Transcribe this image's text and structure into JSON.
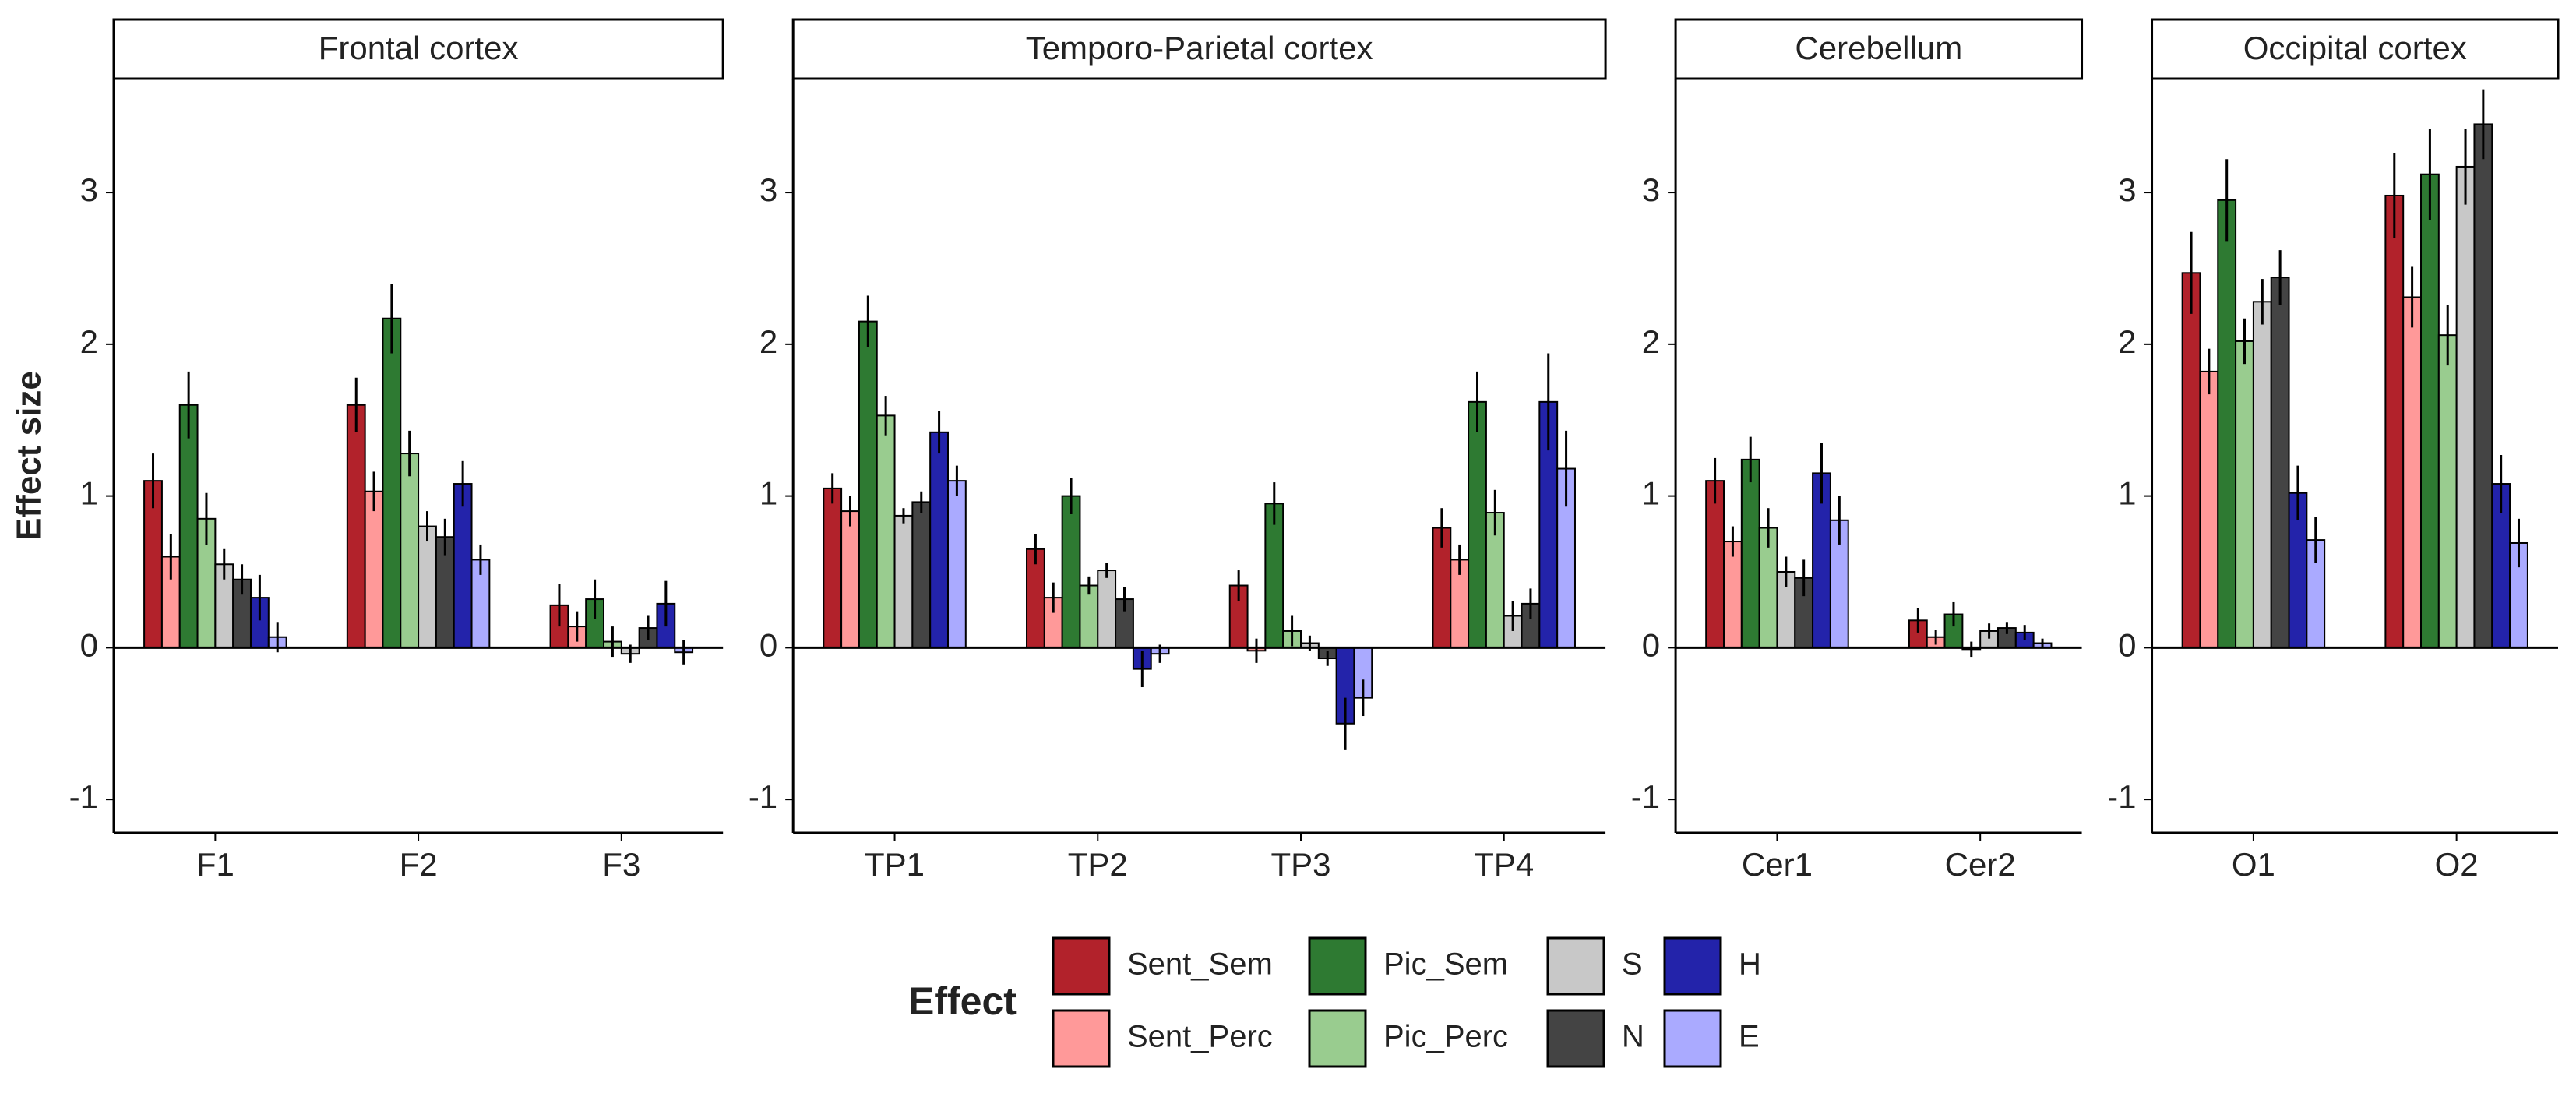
{
  "chart_data": [
    {
      "type": "bar",
      "title": "Frontal cortex",
      "ylabel": "Effect size",
      "legend_title": "Effect",
      "categories": [
        "F1",
        "F2",
        "F3"
      ],
      "series": [
        {
          "name": "Sent_Sem",
          "color": "#b2222b",
          "values": [
            1.1,
            1.6,
            0.28
          ],
          "errors": [
            0.18,
            0.18,
            0.14
          ]
        },
        {
          "name": "Sent_Perc",
          "color": "#ff9999",
          "values": [
            0.6,
            1.03,
            0.14
          ],
          "errors": [
            0.15,
            0.13,
            0.1
          ]
        },
        {
          "name": "Pic_Sem",
          "color": "#2e7a32",
          "values": [
            1.6,
            2.17,
            0.32
          ],
          "errors": [
            0.22,
            0.23,
            0.13
          ]
        },
        {
          "name": "Pic_Perc",
          "color": "#99cc8f",
          "values": [
            0.85,
            1.28,
            0.04
          ],
          "errors": [
            0.17,
            0.15,
            0.1
          ]
        },
        {
          "name": "S",
          "color": "#c8c8c8",
          "values": [
            0.55,
            0.8,
            -0.04
          ],
          "errors": [
            0.1,
            0.1,
            0.06
          ]
        },
        {
          "name": "N",
          "color": "#444444",
          "values": [
            0.45,
            0.73,
            0.13
          ],
          "errors": [
            0.1,
            0.12,
            0.08
          ]
        },
        {
          "name": "H",
          "color": "#2323aa",
          "values": [
            0.33,
            1.08,
            0.29
          ],
          "errors": [
            0.15,
            0.15,
            0.15
          ]
        },
        {
          "name": "E",
          "color": "#aaaaff",
          "values": [
            0.07,
            0.58,
            -0.03
          ],
          "errors": [
            0.1,
            0.1,
            0.08
          ]
        }
      ],
      "ylim": [
        -1.22,
        3.75
      ],
      "yticks": [
        -1,
        0,
        1,
        2,
        3
      ],
      "hline": 0
    },
    {
      "type": "bar",
      "title": "Temporo-Parietal cortex",
      "categories": [
        "TP1",
        "TP2",
        "TP3",
        "TP4"
      ],
      "series": [
        {
          "name": "Sent_Sem",
          "color": "#b2222b",
          "values": [
            1.05,
            0.65,
            0.41,
            0.79
          ],
          "errors": [
            0.1,
            0.1,
            0.1,
            0.13
          ]
        },
        {
          "name": "Sent_Perc",
          "color": "#ff9999",
          "values": [
            0.9,
            0.33,
            -0.02,
            0.58
          ],
          "errors": [
            0.1,
            0.1,
            0.08,
            0.1
          ]
        },
        {
          "name": "Pic_Sem",
          "color": "#2e7a32",
          "values": [
            2.15,
            1.0,
            0.95,
            1.62
          ],
          "errors": [
            0.17,
            0.12,
            0.14,
            0.2
          ]
        },
        {
          "name": "Pic_Perc",
          "color": "#99cc8f",
          "values": [
            1.53,
            0.41,
            0.11,
            0.89
          ],
          "errors": [
            0.13,
            0.06,
            0.1,
            0.15
          ]
        },
        {
          "name": "S",
          "color": "#c8c8c8",
          "values": [
            0.87,
            0.51,
            0.03,
            0.21
          ],
          "errors": [
            0.05,
            0.05,
            0.05,
            0.1
          ]
        },
        {
          "name": "N",
          "color": "#444444",
          "values": [
            0.96,
            0.32,
            -0.07,
            0.29
          ],
          "errors": [
            0.07,
            0.08,
            0.05,
            0.1
          ]
        },
        {
          "name": "H",
          "color": "#2323aa",
          "values": [
            1.42,
            -0.14,
            -0.5,
            1.62
          ],
          "errors": [
            0.14,
            0.12,
            0.17,
            0.32
          ]
        },
        {
          "name": "E",
          "color": "#aaaaff",
          "values": [
            1.1,
            -0.04,
            -0.33,
            1.18
          ],
          "errors": [
            0.1,
            0.06,
            0.12,
            0.25
          ]
        }
      ],
      "ylim": [
        -1.22,
        3.75
      ],
      "yticks": [
        -1,
        0,
        1,
        2,
        3
      ],
      "hline": 0
    },
    {
      "type": "bar",
      "title": "Cerebellum",
      "categories": [
        "Cer1",
        "Cer2"
      ],
      "series": [
        {
          "name": "Sent_Sem",
          "color": "#b2222b",
          "values": [
            1.1,
            0.18
          ],
          "errors": [
            0.15,
            0.08
          ]
        },
        {
          "name": "Sent_Perc",
          "color": "#ff9999",
          "values": [
            0.7,
            0.07
          ],
          "errors": [
            0.1,
            0.05
          ]
        },
        {
          "name": "Pic_Sem",
          "color": "#2e7a32",
          "values": [
            1.24,
            0.22
          ],
          "errors": [
            0.15,
            0.08
          ]
        },
        {
          "name": "Pic_Perc",
          "color": "#99cc8f",
          "values": [
            0.79,
            -0.01
          ],
          "errors": [
            0.13,
            0.05
          ]
        },
        {
          "name": "S",
          "color": "#c8c8c8",
          "values": [
            0.5,
            0.11
          ],
          "errors": [
            0.1,
            0.05
          ]
        },
        {
          "name": "N",
          "color": "#444444",
          "values": [
            0.46,
            0.13
          ],
          "errors": [
            0.12,
            0.04
          ]
        },
        {
          "name": "H",
          "color": "#2323aa",
          "values": [
            1.15,
            0.1
          ],
          "errors": [
            0.2,
            0.05
          ]
        },
        {
          "name": "E",
          "color": "#aaaaff",
          "values": [
            0.84,
            0.03
          ],
          "errors": [
            0.16,
            0.03
          ]
        }
      ],
      "ylim": [
        -1.22,
        3.75
      ],
      "yticks": [
        -1,
        0,
        1,
        2,
        3
      ],
      "hline": 0
    },
    {
      "type": "bar",
      "title": "Occipital cortex",
      "categories": [
        "O1",
        "O2"
      ],
      "series": [
        {
          "name": "Sent_Sem",
          "color": "#b2222b",
          "values": [
            2.47,
            2.98
          ],
          "errors": [
            0.27,
            0.28
          ]
        },
        {
          "name": "Sent_Perc",
          "color": "#ff9999",
          "values": [
            1.82,
            2.31
          ],
          "errors": [
            0.15,
            0.2
          ]
        },
        {
          "name": "Pic_Sem",
          "color": "#2e7a32",
          "values": [
            2.95,
            3.12
          ],
          "errors": [
            0.27,
            0.3
          ]
        },
        {
          "name": "Pic_Perc",
          "color": "#99cc8f",
          "values": [
            2.02,
            2.06
          ],
          "errors": [
            0.15,
            0.2
          ]
        },
        {
          "name": "S",
          "color": "#c8c8c8",
          "values": [
            2.28,
            3.17
          ],
          "errors": [
            0.15,
            0.25
          ]
        },
        {
          "name": "N",
          "color": "#444444",
          "values": [
            2.44,
            3.45
          ],
          "errors": [
            0.18,
            0.23
          ]
        },
        {
          "name": "H",
          "color": "#2323aa",
          "values": [
            1.02,
            1.08
          ],
          "errors": [
            0.18,
            0.19
          ]
        },
        {
          "name": "E",
          "color": "#aaaaff",
          "values": [
            0.71,
            0.69
          ],
          "errors": [
            0.15,
            0.16
          ]
        }
      ],
      "ylim": [
        -1.22,
        3.75
      ],
      "yticks": [
        -1,
        0,
        1,
        2,
        3
      ],
      "hline": 0
    }
  ]
}
